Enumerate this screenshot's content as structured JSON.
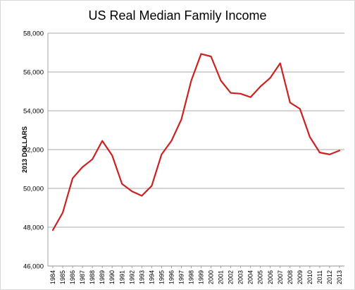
{
  "chart_data": {
    "type": "line",
    "title": "US Real Median Family Income",
    "xlabel": "",
    "ylabel": "2013 DOLLARS",
    "ylim": [
      46000,
      58000
    ],
    "y_ticks": [
      "46,000",
      "48,000",
      "50,000",
      "52,000",
      "54,000",
      "56,000",
      "58,000"
    ],
    "grid": "horizontal",
    "line_color": "#cc2121",
    "categories": [
      "1984",
      "1985",
      "1986",
      "1987",
      "1988",
      "1989",
      "1990",
      "1991",
      "1992",
      "1993",
      "1994",
      "1995",
      "1996",
      "1997",
      "1998",
      "1999",
      "2000",
      "2001",
      "2002",
      "2003",
      "2004",
      "2005",
      "2006",
      "2007",
      "2008",
      "2009",
      "2010",
      "2011",
      "2012",
      "2013"
    ],
    "series": [
      {
        "values": [
          47850,
          48750,
          50520,
          51100,
          51500,
          52450,
          51700,
          50230,
          49850,
          49620,
          50130,
          51750,
          52450,
          53550,
          55550,
          56930,
          56800,
          55550,
          54920,
          54880,
          54700,
          55250,
          55700,
          56450,
          54420,
          54100,
          52650,
          51850,
          51750,
          51950
        ]
      }
    ]
  }
}
